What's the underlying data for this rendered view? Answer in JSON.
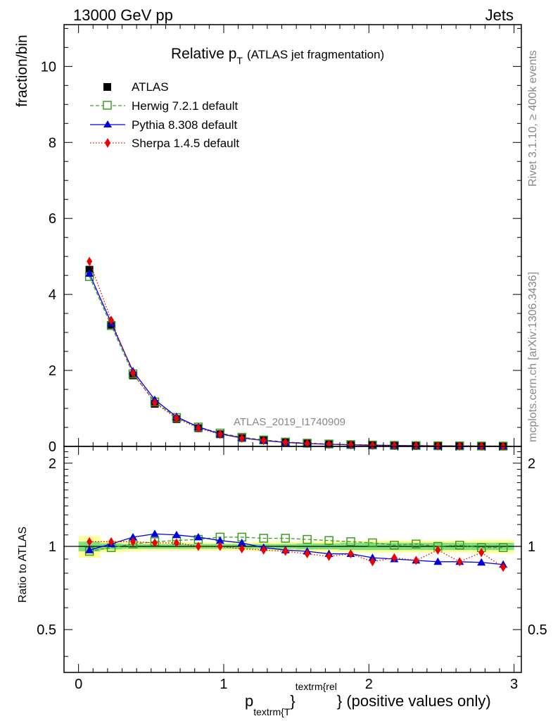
{
  "header": {
    "energy_label": "13000 GeV pp",
    "process_label": "Jets"
  },
  "side_labels": {
    "rivet": "Rivet 3.1.10, ≥ 400k events",
    "mcplots": "mcplots.cern.ch [arXiv:1306.3436]"
  },
  "chart_data": [
    {
      "type": "line",
      "panel": "main",
      "title_main": "Relative p",
      "title_sub": "T",
      "title_rest": "(ATLAS jet fragmentation)",
      "ylabel": "fraction/bin",
      "analysis_label": "ATLAS_2019_I1740909",
      "xlim": [
        -0.1,
        3.05
      ],
      "ylim": [
        0,
        11.1
      ],
      "yticks": [
        0,
        2,
        4,
        6,
        8,
        10
      ],
      "ytick_labels": [
        "0",
        "2",
        "4",
        "6",
        "8",
        "10"
      ],
      "x": [
        0.075,
        0.225,
        0.375,
        0.525,
        0.675,
        0.825,
        0.975,
        1.125,
        1.275,
        1.425,
        1.575,
        1.725,
        1.875,
        2.025,
        2.175,
        2.325,
        2.475,
        2.625,
        2.775,
        2.925
      ],
      "series": [
        {
          "name": "ATLAS",
          "style": "data",
          "color": "#000000",
          "values": [
            4.65,
            3.2,
            1.87,
            1.12,
            0.72,
            0.48,
            0.32,
            0.22,
            0.16,
            0.11,
            0.08,
            0.06,
            0.045,
            0.035,
            0.027,
            0.021,
            0.016,
            0.013,
            0.01,
            0.008
          ]
        },
        {
          "name": "Herwig 7.2.1 default",
          "style": "herwig",
          "color": "#3a9d23",
          "values": [
            4.47,
            3.18,
            1.91,
            1.17,
            0.76,
            0.51,
            0.35,
            0.24,
            0.17,
            0.115,
            0.085,
            0.063,
            0.047,
            0.036,
            0.027,
            0.021,
            0.016,
            0.013,
            0.01,
            0.008
          ]
        },
        {
          "name": "Pythia 8.308 default",
          "style": "pythia",
          "color": "#0000dd",
          "values": [
            4.55,
            3.25,
            1.98,
            1.23,
            0.78,
            0.51,
            0.33,
            0.225,
            0.155,
            0.105,
            0.075,
            0.055,
            0.041,
            0.031,
            0.024,
            0.018,
            0.014,
            0.011,
            0.009,
            0.007
          ]
        },
        {
          "name": "Sherpa 1.4.5 default",
          "style": "sherpa",
          "color": "#ee0000",
          "values": [
            4.87,
            3.32,
            1.93,
            1.15,
            0.74,
            0.48,
            0.32,
            0.215,
            0.155,
            0.105,
            0.075,
            0.055,
            0.042,
            0.031,
            0.025,
            0.019,
            0.016,
            0.012,
            0.009,
            0.007
          ]
        }
      ]
    },
    {
      "type": "line",
      "panel": "ratio",
      "ylabel": "Ratio to ATLAS",
      "xlabel_main": "p",
      "xlabel_sub": "textrm{T",
      "xlabel_sup": "textrm{rel",
      "xlabel_brace": "}",
      "xlabel_rest": "} (positive values only)",
      "xlim": [
        -0.1,
        3.05
      ],
      "ylim": [
        0.35,
        2.3
      ],
      "yticks": [
        0.5,
        1,
        2
      ],
      "ytick_labels": [
        "0.5",
        "1",
        "2"
      ],
      "xticks": [
        0,
        1,
        2,
        3
      ],
      "xtick_labels": [
        "0",
        "1",
        "2",
        "3"
      ],
      "x": [
        0.075,
        0.225,
        0.375,
        0.525,
        0.675,
        0.825,
        0.975,
        1.125,
        1.275,
        1.425,
        1.575,
        1.725,
        1.875,
        2.025,
        2.175,
        2.325,
        2.475,
        2.625,
        2.775,
        2.925
      ],
      "bands": {
        "inner_color": "#7fe07f",
        "outer_color": "#ffff99",
        "inner": [
          0.04,
          0.025,
          0.02,
          0.02,
          0.02,
          0.02,
          0.02,
          0.02,
          0.02,
          0.02,
          0.025,
          0.025,
          0.03,
          0.03,
          0.03,
          0.03,
          0.03,
          0.03,
          0.03,
          0.03
        ],
        "outer": [
          0.09,
          0.05,
          0.04,
          0.035,
          0.035,
          0.035,
          0.035,
          0.035,
          0.04,
          0.04,
          0.04,
          0.045,
          0.045,
          0.05,
          0.05,
          0.05,
          0.05,
          0.05,
          0.055,
          0.055
        ]
      },
      "series": [
        {
          "name": "Herwig 7.2.1 default",
          "style": "herwig",
          "color": "#3a9d23",
          "values": [
            0.96,
            0.99,
            1.02,
            1.04,
            1.05,
            1.06,
            1.08,
            1.08,
            1.07,
            1.07,
            1.06,
            1.05,
            1.04,
            1.03,
            1.01,
            1.02,
            1.0,
            1.01,
            0.99,
            0.99
          ]
        },
        {
          "name": "Pythia 8.308 default",
          "style": "pythia",
          "color": "#0000dd",
          "values": [
            0.97,
            1.02,
            1.08,
            1.11,
            1.1,
            1.08,
            1.05,
            1.03,
            0.99,
            0.97,
            0.96,
            0.94,
            0.94,
            0.91,
            0.9,
            0.89,
            0.88,
            0.88,
            0.875,
            0.86
          ]
        },
        {
          "name": "Sherpa 1.4.5 default",
          "style": "sherpa",
          "color": "#ee0000",
          "values": [
            1.04,
            1.04,
            1.04,
            1.03,
            1.03,
            1.0,
            1.0,
            0.98,
            0.97,
            0.96,
            0.94,
            0.92,
            0.94,
            0.88,
            0.91,
            0.89,
            0.97,
            0.88,
            0.95,
            0.84
          ]
        }
      ]
    }
  ]
}
